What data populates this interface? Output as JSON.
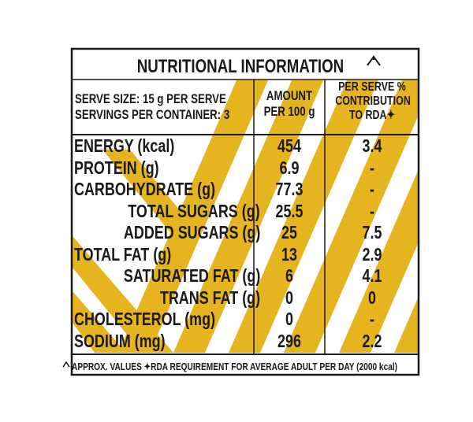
{
  "header": {
    "title": "NUTRITIONAL INFORMATION",
    "serve_size": "SERVE SIZE: 15 g PER SERVE",
    "servings": "SERVINGS PER CONTAINER: 3",
    "amount": [
      "AMOUNT",
      "PER 100 g"
    ],
    "rda": [
      "PER SERVE %",
      "CONTRIBUTION",
      "TO RDA✦"
    ]
  },
  "table": {
    "rows": [
      [
        "ENERGY (kcal)",
        454,
        3.4
      ],
      [
        "PROTEIN (g)",
        6.9,
        "-"
      ],
      [
        "CARBOHYDRATE (g)",
        77.3,
        "-"
      ],
      [
        "TOTAL SUGARS (g)",
        25.5,
        "-"
      ],
      [
        "ADDED SUGARS (g)",
        25,
        7.5
      ],
      [
        "TOTAL FAT (g)",
        13,
        2.9
      ],
      [
        "SATURATED FAT (g)",
        6,
        4.1
      ],
      [
        "TRANS FAT (g)",
        0,
        0
      ],
      [
        "CHOLESTEROL (mg)",
        0,
        "-"
      ],
      [
        "SODIUM (mg)",
        296,
        2.2
      ]
    ]
  },
  "footer": {
    "note": "APPROX. VALUES ✦RDA REQUIREMENT FOR AVERAGE ADULT PER DAY (2000 kcal)"
  }
}
